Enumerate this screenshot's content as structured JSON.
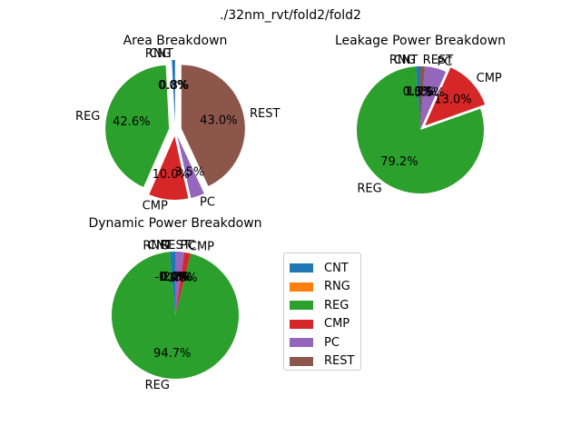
{
  "suptitle": "./32nm_rvt/fold2/fold2",
  "colors": {
    "CNT": "#1f77b4",
    "RNG": "#ff7f0e",
    "REG": "#2ca02c",
    "CMP": "#d62728",
    "PC": "#9467bd",
    "REST": "#8c564b"
  },
  "legend": {
    "entries": [
      "CNT",
      "RNG",
      "REG",
      "CMP",
      "PC",
      "REST"
    ]
  },
  "chart_data": [
    {
      "type": "pie",
      "title": "Area Breakdown",
      "labels": [
        "CNT",
        "RNG",
        "REG",
        "CMP",
        "PC",
        "REST"
      ],
      "values": [
        0.8,
        0.0,
        42.6,
        10.0,
        3.5,
        43.0
      ],
      "pct_labels": [
        "0.8%",
        "0.0%",
        "42.6%",
        "10.0%",
        "3.5%",
        "43.0%"
      ],
      "explode": [
        0.1,
        0.1,
        0.1,
        0.1,
        0.1,
        0.1
      ],
      "startangle": 90
    },
    {
      "type": "pie",
      "title": "Leakage Power Breakdown",
      "labels": [
        "CNT",
        "RNG",
        "REG",
        "CMP",
        "PC",
        "REST"
      ],
      "values": [
        1.1,
        0.0,
        79.2,
        13.0,
        5.5,
        1.1
      ],
      "pct_labels": [
        "1.1%",
        "0.0%",
        "79.2%",
        "13.0%",
        "5.5%",
        "1.1%"
      ],
      "explode": [
        0,
        0,
        0,
        0.1,
        0,
        0
      ],
      "startangle": 90
    },
    {
      "type": "pie",
      "title": "Dynamic Power Breakdown",
      "labels": [
        "CNT",
        "RNG",
        "REG",
        "CMP",
        "PC",
        "REST"
      ],
      "values": [
        1.4,
        0.0,
        94.7,
        1.6,
        2.3,
        0.0
      ],
      "pct_labels": [
        "1.4%",
        "-0.0%",
        "94.7%",
        "1.6%",
        "2.3%",
        "0.0%"
      ],
      "explode": [
        0,
        0,
        0,
        0,
        0,
        0
      ],
      "startangle": 90
    }
  ]
}
